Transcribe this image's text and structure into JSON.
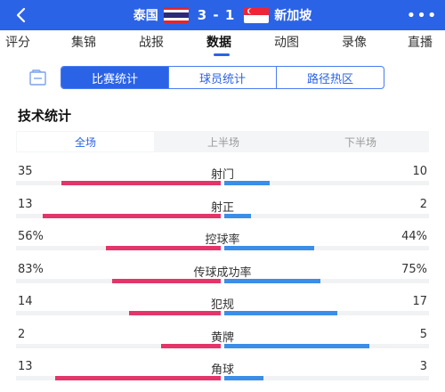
{
  "header": {
    "home_team": "泰国",
    "away_team": "新加坡",
    "score": "3 - 1",
    "back_icon": "chevron-left-icon",
    "more_label": "•••"
  },
  "tabs": [
    {
      "label": "评分"
    },
    {
      "label": "集锦"
    },
    {
      "label": "战报"
    },
    {
      "label": "数据",
      "active": true
    },
    {
      "label": "动图"
    },
    {
      "label": "录像"
    },
    {
      "label": "直播"
    }
  ],
  "segment": {
    "icon": "document-icon",
    "options": [
      {
        "label": "比赛统计",
        "active": true
      },
      {
        "label": "球员统计"
      },
      {
        "label": "路径热区"
      }
    ]
  },
  "section_title": "技术统计",
  "period_tabs": [
    {
      "label": "全场",
      "active": true
    },
    {
      "label": "上半场"
    },
    {
      "label": "下半场"
    }
  ],
  "colors": {
    "accent": "#2b63e6",
    "home_bar": "#e3356a",
    "away_bar": "#3a8ee8"
  },
  "stats": [
    {
      "name": "射门",
      "left": "35",
      "right": "10",
      "left_fraction": 0.78,
      "right_fraction": 0.22
    },
    {
      "name": "射正",
      "left": "13",
      "right": "2",
      "left_fraction": 0.87,
      "right_fraction": 0.13
    },
    {
      "name": "控球率",
      "left": "56%",
      "right": "44%",
      "left_fraction": 0.56,
      "right_fraction": 0.44
    },
    {
      "name": "传球成功率",
      "left": "83%",
      "right": "75%",
      "left_fraction": 0.53,
      "right_fraction": 0.47
    },
    {
      "name": "犯规",
      "left": "14",
      "right": "17",
      "left_fraction": 0.45,
      "right_fraction": 0.55
    },
    {
      "name": "黄牌",
      "left": "2",
      "right": "5",
      "left_fraction": 0.29,
      "right_fraction": 0.71
    },
    {
      "name": "角球",
      "left": "13",
      "right": "3",
      "left_fraction": 0.81,
      "right_fraction": 0.19
    }
  ]
}
